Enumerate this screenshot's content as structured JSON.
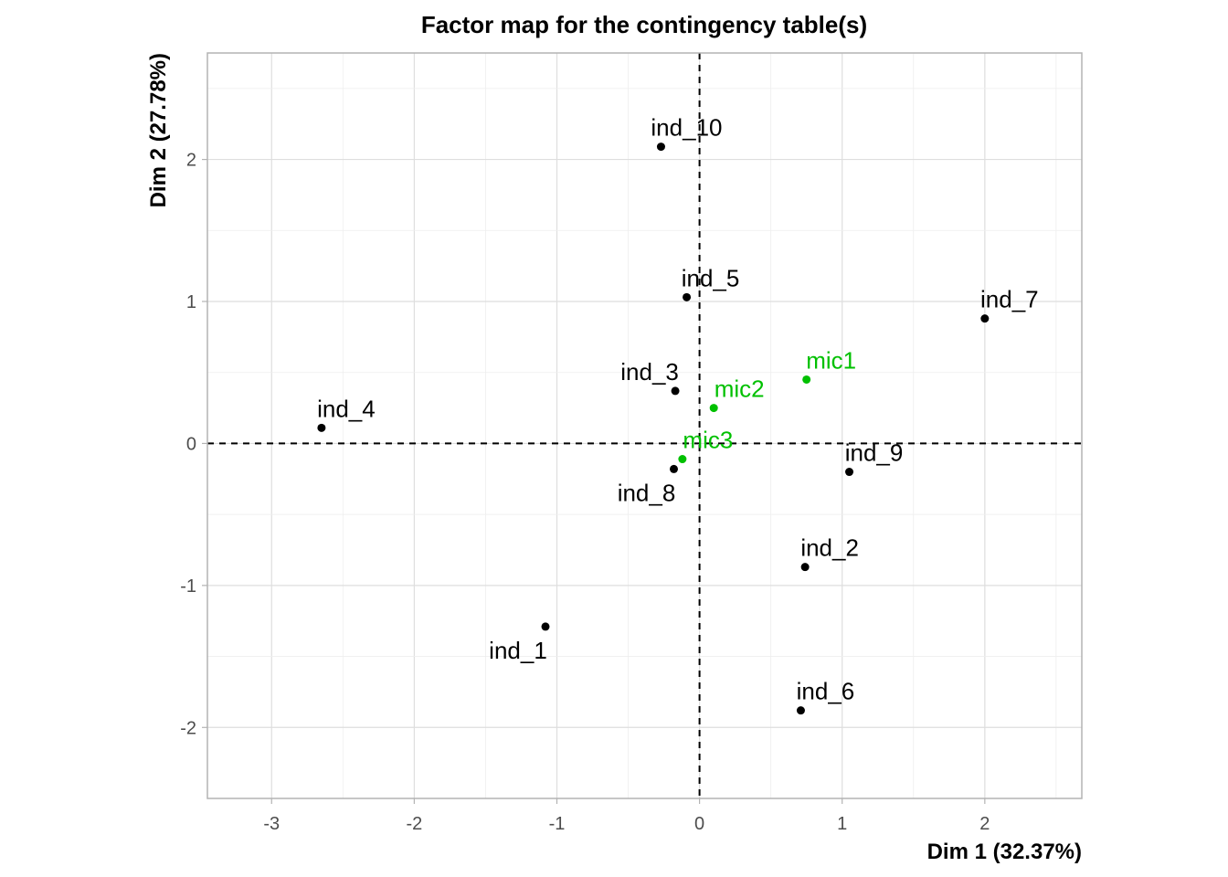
{
  "chart_data": {
    "type": "scatter",
    "title": "Factor map for the contingency table(s)",
    "xlabel": "Dim 1 (32.37%)",
    "ylabel": "Dim 2 (27.78%)",
    "xlim": [
      -3.45,
      2.68
    ],
    "ylim": [
      -2.5,
      2.75
    ],
    "xticks": [
      -3,
      -2,
      -1,
      0,
      1,
      2
    ],
    "yticks": [
      -2,
      -1,
      0,
      1,
      2
    ],
    "grid": true,
    "reference_lines": {
      "x": 0,
      "y": 0,
      "style": "dashed"
    },
    "series": [
      {
        "color": "#000000",
        "points": [
          {
            "label": "ind_10",
            "x": -0.27,
            "y": 2.09
          },
          {
            "label": "ind_5",
            "x": -0.09,
            "y": 1.03
          },
          {
            "label": "ind_7",
            "x": 2.0,
            "y": 0.88
          },
          {
            "label": "ind_3",
            "x": -0.17,
            "y": 0.37
          },
          {
            "label": "ind_4",
            "x": -2.65,
            "y": 0.11
          },
          {
            "label": "ind_9",
            "x": 1.05,
            "y": -0.2
          },
          {
            "label": "ind_8",
            "x": -0.18,
            "y": -0.18
          },
          {
            "label": "ind_2",
            "x": 0.74,
            "y": -0.87
          },
          {
            "label": "ind_1",
            "x": -1.08,
            "y": -1.29
          },
          {
            "label": "ind_6",
            "x": 0.71,
            "y": -1.88
          }
        ]
      },
      {
        "color": "#00c000",
        "points": [
          {
            "label": "mic1",
            "x": 0.75,
            "y": 0.45
          },
          {
            "label": "mic2",
            "x": 0.1,
            "y": 0.25
          },
          {
            "label": "mic3",
            "x": -0.12,
            "y": -0.11
          }
        ]
      }
    ]
  }
}
